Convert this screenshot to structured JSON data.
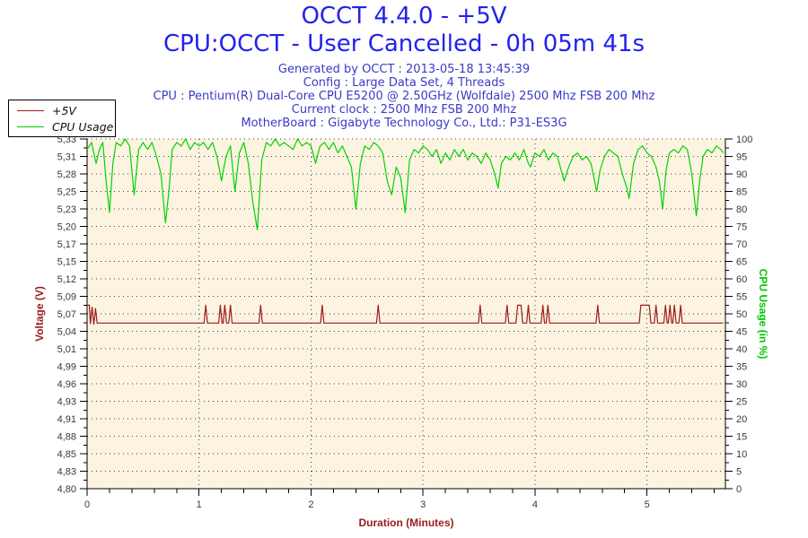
{
  "header": {
    "title_line1": "OCCT 4.4.0 - +5V",
    "title_line2": "CPU:OCCT - User Cancelled - 0h 05m 41s",
    "info_lines": [
      "Generated by OCCT : 2013-05-18 13:45:39",
      "Config : Large Data Set, 4 Threads",
      "CPU : Pentium(R) Dual-Core CPU E5200 @ 2.50GHz (Wolfdale) 2500 Mhz FSB 200 Mhz",
      "Current clock : 2500 Mhz FSB 200 Mhz",
      "MotherBoard : Gigabyte Technology Co., Ltd.: P31-ES3G"
    ]
  },
  "colors": {
    "title_blue": "#2222EE",
    "info_blue": "#3A3AC8",
    "voltage_red": "#9B1B1B",
    "cpu_green": "#00D400",
    "cpu_green_label": "#00C800",
    "tick_text": "#3A3A3A",
    "plot_bg": "#FCF4E1",
    "grid_dot": "#404040",
    "axis_black": "#000000"
  },
  "legend": {
    "items": [
      {
        "label": "+5V",
        "color": "#9B1B1B"
      },
      {
        "label": "CPU Usage",
        "color": "#00D400"
      }
    ]
  },
  "chart_data": {
    "type": "line",
    "title": "OCCT 4.4.0 - +5V",
    "grid": "dotted",
    "legend_position": "top-left",
    "x_axis": {
      "label": "Duration (Minutes)",
      "min": 0,
      "max": 5.7,
      "major_ticks": [
        0,
        1,
        2,
        3,
        4,
        5
      ],
      "tick_labels": [
        "0",
        "1",
        "2",
        "3",
        "4",
        "5"
      ],
      "minor_step": 0.2
    },
    "y_axis_left": {
      "label": "Voltage (V)",
      "min": 4.8,
      "max": 5.33,
      "tick_labels": [
        "5,33",
        "5,31",
        "5,28",
        "5,25",
        "5,23",
        "5,20",
        "5,17",
        "5,15",
        "5,12",
        "5,09",
        "5,07",
        "5,04",
        "5,01",
        "4,99",
        "4,96",
        "4,93",
        "4,91",
        "4,88",
        "4,85",
        "4,83",
        "4,80"
      ]
    },
    "y_axis_right": {
      "label": "CPU Usage (in %)",
      "min": 0,
      "max": 100,
      "tick_labels": [
        "100",
        "95",
        "90",
        "85",
        "80",
        "75",
        "70",
        "65",
        "60",
        "55",
        "50",
        "45",
        "40",
        "35",
        "30",
        "25",
        "20",
        "15",
        "10",
        "5",
        "0"
      ]
    },
    "series": [
      {
        "name": "CPU Usage",
        "axis": "right",
        "color": "#00D400",
        "points": [
          [
            0.0,
            97
          ],
          [
            0.04,
            99
          ],
          [
            0.08,
            93
          ],
          [
            0.11,
            97
          ],
          [
            0.14,
            99
          ],
          [
            0.17,
            88
          ],
          [
            0.2,
            79
          ],
          [
            0.23,
            93
          ],
          [
            0.26,
            99
          ],
          [
            0.3,
            98
          ],
          [
            0.34,
            100
          ],
          [
            0.38,
            98
          ],
          [
            0.42,
            84
          ],
          [
            0.46,
            97
          ],
          [
            0.5,
            99
          ],
          [
            0.54,
            97
          ],
          [
            0.58,
            99
          ],
          [
            0.62,
            95
          ],
          [
            0.66,
            90
          ],
          [
            0.7,
            76
          ],
          [
            0.73,
            85
          ],
          [
            0.76,
            97
          ],
          [
            0.8,
            99
          ],
          [
            0.84,
            98
          ],
          [
            0.88,
            100
          ],
          [
            0.92,
            97
          ],
          [
            0.96,
            99
          ],
          [
            1.0,
            98
          ],
          [
            1.04,
            99
          ],
          [
            1.08,
            97
          ],
          [
            1.12,
            99
          ],
          [
            1.16,
            95
          ],
          [
            1.2,
            88
          ],
          [
            1.24,
            95
          ],
          [
            1.28,
            98
          ],
          [
            1.32,
            85
          ],
          [
            1.36,
            96
          ],
          [
            1.4,
            99
          ],
          [
            1.44,
            93
          ],
          [
            1.48,
            82
          ],
          [
            1.52,
            74
          ],
          [
            1.56,
            94
          ],
          [
            1.6,
            99
          ],
          [
            1.64,
            98
          ],
          [
            1.68,
            100
          ],
          [
            1.72,
            98
          ],
          [
            1.76,
            99
          ],
          [
            1.8,
            98
          ],
          [
            1.84,
            97
          ],
          [
            1.88,
            100
          ],
          [
            1.92,
            98
          ],
          [
            1.96,
            99
          ],
          [
            2.0,
            98
          ],
          [
            2.04,
            93
          ],
          [
            2.08,
            98
          ],
          [
            2.12,
            99
          ],
          [
            2.16,
            97
          ],
          [
            2.2,
            99
          ],
          [
            2.24,
            96
          ],
          [
            2.28,
            98
          ],
          [
            2.32,
            95
          ],
          [
            2.36,
            92
          ],
          [
            2.4,
            80
          ],
          [
            2.44,
            93
          ],
          [
            2.48,
            98
          ],
          [
            2.52,
            97
          ],
          [
            2.56,
            99
          ],
          [
            2.6,
            98
          ],
          [
            2.64,
            96
          ],
          [
            2.68,
            88
          ],
          [
            2.72,
            84
          ],
          [
            2.76,
            92
          ],
          [
            2.8,
            89
          ],
          [
            2.84,
            79
          ],
          [
            2.88,
            94
          ],
          [
            2.92,
            97
          ],
          [
            2.96,
            96
          ],
          [
            3.0,
            98
          ],
          [
            3.04,
            97
          ],
          [
            3.08,
            95
          ],
          [
            3.12,
            97
          ],
          [
            3.16,
            93
          ],
          [
            3.2,
            96
          ],
          [
            3.24,
            94
          ],
          [
            3.28,
            97
          ],
          [
            3.32,
            95
          ],
          [
            3.36,
            97
          ],
          [
            3.4,
            94
          ],
          [
            3.44,
            96
          ],
          [
            3.48,
            95
          ],
          [
            3.52,
            93
          ],
          [
            3.56,
            96
          ],
          [
            3.6,
            94
          ],
          [
            3.64,
            90
          ],
          [
            3.67,
            86
          ],
          [
            3.7,
            93
          ],
          [
            3.74,
            95
          ],
          [
            3.78,
            94
          ],
          [
            3.82,
            96
          ],
          [
            3.86,
            94
          ],
          [
            3.9,
            97
          ],
          [
            3.94,
            93
          ],
          [
            3.96,
            92
          ],
          [
            4.0,
            96
          ],
          [
            4.04,
            95
          ],
          [
            4.08,
            97
          ],
          [
            4.12,
            94
          ],
          [
            4.16,
            96
          ],
          [
            4.2,
            95
          ],
          [
            4.26,
            88
          ],
          [
            4.3,
            92
          ],
          [
            4.34,
            95
          ],
          [
            4.38,
            96
          ],
          [
            4.42,
            94
          ],
          [
            4.46,
            95
          ],
          [
            4.5,
            93
          ],
          [
            4.55,
            85
          ],
          [
            4.58,
            91
          ],
          [
            4.62,
            95
          ],
          [
            4.66,
            97
          ],
          [
            4.7,
            96
          ],
          [
            4.74,
            95
          ],
          [
            4.78,
            90
          ],
          [
            4.82,
            86
          ],
          [
            4.84,
            83
          ],
          [
            4.88,
            93
          ],
          [
            4.92,
            97
          ],
          [
            4.96,
            98
          ],
          [
            5.0,
            96
          ],
          [
            5.04,
            95
          ],
          [
            5.08,
            92
          ],
          [
            5.11,
            88
          ],
          [
            5.14,
            80
          ],
          [
            5.17,
            91
          ],
          [
            5.2,
            96
          ],
          [
            5.24,
            97
          ],
          [
            5.28,
            96
          ],
          [
            5.32,
            98
          ],
          [
            5.36,
            97
          ],
          [
            5.4,
            90
          ],
          [
            5.44,
            78
          ],
          [
            5.47,
            88
          ],
          [
            5.5,
            95
          ],
          [
            5.54,
            97
          ],
          [
            5.58,
            96
          ],
          [
            5.62,
            98
          ],
          [
            5.66,
            97
          ],
          [
            5.68,
            96
          ]
        ]
      },
      {
        "name": "+5V",
        "axis": "left",
        "color": "#9B1B1B",
        "points": [
          [
            0.0,
            5.078
          ],
          [
            0.02,
            5.078
          ],
          [
            0.03,
            5.05
          ],
          [
            0.045,
            5.075
          ],
          [
            0.06,
            5.049
          ],
          [
            0.075,
            5.073
          ],
          [
            0.09,
            5.051
          ],
          [
            0.12,
            5.051
          ],
          [
            1.045,
            5.051
          ],
          [
            1.06,
            5.078
          ],
          [
            1.075,
            5.051
          ],
          [
            1.175,
            5.051
          ],
          [
            1.19,
            5.078
          ],
          [
            1.205,
            5.051
          ],
          [
            1.215,
            5.051
          ],
          [
            1.23,
            5.078
          ],
          [
            1.245,
            5.051
          ],
          [
            1.265,
            5.051
          ],
          [
            1.28,
            5.078
          ],
          [
            1.295,
            5.051
          ],
          [
            1.535,
            5.051
          ],
          [
            1.55,
            5.078
          ],
          [
            1.565,
            5.051
          ],
          [
            2.085,
            5.051
          ],
          [
            2.1,
            5.078
          ],
          [
            2.115,
            5.051
          ],
          [
            2.585,
            5.051
          ],
          [
            2.6,
            5.078
          ],
          [
            2.615,
            5.051
          ],
          [
            3.495,
            5.051
          ],
          [
            3.51,
            5.078
          ],
          [
            3.525,
            5.051
          ],
          [
            3.735,
            5.051
          ],
          [
            3.75,
            5.078
          ],
          [
            3.765,
            5.051
          ],
          [
            3.83,
            5.051
          ],
          [
            3.845,
            5.078
          ],
          [
            3.875,
            5.078
          ],
          [
            3.89,
            5.051
          ],
          [
            3.925,
            5.051
          ],
          [
            3.94,
            5.078
          ],
          [
            3.955,
            5.051
          ],
          [
            4.055,
            5.051
          ],
          [
            4.07,
            5.078
          ],
          [
            4.085,
            5.051
          ],
          [
            4.1,
            5.051
          ],
          [
            4.115,
            5.078
          ],
          [
            4.13,
            5.051
          ],
          [
            4.545,
            5.051
          ],
          [
            4.56,
            5.078
          ],
          [
            4.575,
            5.051
          ],
          [
            4.93,
            5.051
          ],
          [
            4.945,
            5.078
          ],
          [
            5.02,
            5.078
          ],
          [
            5.035,
            5.051
          ],
          [
            5.065,
            5.051
          ],
          [
            5.08,
            5.078
          ],
          [
            5.095,
            5.051
          ],
          [
            5.15,
            5.051
          ],
          [
            5.165,
            5.078
          ],
          [
            5.18,
            5.051
          ],
          [
            5.19,
            5.051
          ],
          [
            5.205,
            5.078
          ],
          [
            5.22,
            5.051
          ],
          [
            5.23,
            5.051
          ],
          [
            5.245,
            5.078
          ],
          [
            5.26,
            5.051
          ],
          [
            5.285,
            5.051
          ],
          [
            5.3,
            5.078
          ],
          [
            5.315,
            5.051
          ],
          [
            5.68,
            5.051
          ]
        ]
      }
    ]
  }
}
